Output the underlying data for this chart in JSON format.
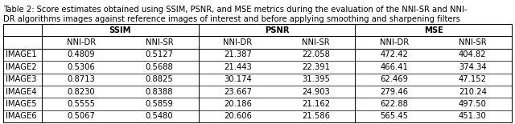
{
  "title_line1": "Table 2: Score estimates obtained using SSIM, PSNR, and MSE metrics during the evaluation of the NNI-SR and NNI-",
  "title_line2": "DR algorithms images against reference images of interest and before applying smoothing and sharpening filters",
  "col_groups": [
    "SSIM",
    "PSNR",
    "MSE"
  ],
  "col_headers": [
    "NNI-DR",
    "NNI-SR",
    "NNI-DR",
    "NNI-SR",
    "NNI-DR",
    "NNI-SR"
  ],
  "row_labels": [
    "IMAGE1",
    "IMAGE2",
    "IMAGE3",
    "IMAGE4",
    "IMAGE5",
    "IMAGE6"
  ],
  "data": [
    [
      "0.4809",
      "0.5127",
      "21.387",
      "22.058",
      "472.42",
      "404.82"
    ],
    [
      "0.5306",
      "0.5688",
      "21.443",
      "22.391",
      "466.41",
      "374.34"
    ],
    [
      "0.8713",
      "0.8825",
      "30.174",
      "31.395",
      "62.469",
      "47.152"
    ],
    [
      "0.8230",
      "0.8388",
      "23.667",
      "24.903",
      "279.46",
      "210.24"
    ],
    [
      "0.5555",
      "0.5859",
      "20.186",
      "21.162",
      "622.88",
      "497.50"
    ],
    [
      "0.5067",
      "0.5480",
      "20.606",
      "21.586",
      "565.45",
      "451.30"
    ]
  ],
  "background_color": "#ffffff",
  "line_color": "#000000",
  "title_fontsize": 7.2,
  "header_fontsize": 7.2,
  "cell_fontsize": 7.2
}
